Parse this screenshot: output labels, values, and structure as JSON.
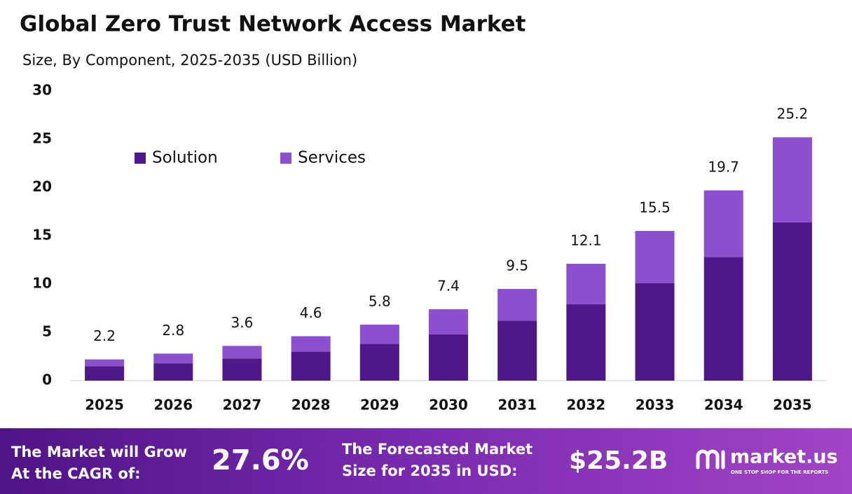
{
  "chart_data": {
    "type": "bar",
    "stacked": true,
    "title": "Global Zero Trust Network Access Market",
    "subtitle": "Size, By Component, 2025-2035 (USD Billion)",
    "categories": [
      "2025",
      "2026",
      "2027",
      "2028",
      "2029",
      "2030",
      "2031",
      "2032",
      "2033",
      "2034",
      "2035"
    ],
    "series": [
      {
        "name": "Solution",
        "color": "#4e1888",
        "values": [
          1.5,
          1.8,
          2.3,
          3.0,
          3.8,
          4.8,
          6.2,
          7.9,
          10.1,
          12.8,
          16.4
        ]
      },
      {
        "name": "Services",
        "color": "#8b4fd0",
        "values": [
          0.7,
          1.0,
          1.3,
          1.6,
          2.0,
          2.6,
          3.3,
          4.2,
          5.4,
          6.9,
          8.8
        ]
      }
    ],
    "totals": [
      2.2,
      2.8,
      3.6,
      4.6,
      5.8,
      7.4,
      9.5,
      12.1,
      15.5,
      19.7,
      25.2
    ],
    "ylim": [
      0,
      30
    ],
    "yticks": [
      0,
      5,
      10,
      15,
      20,
      25,
      30
    ],
    "grid": false,
    "legend": "top-left"
  },
  "footer": {
    "cagr_text": [
      "The Market will Grow",
      "At the CAGR of:"
    ],
    "cagr_value": "27.6%",
    "forecast_text": [
      "The Forecasted Market",
      "Size for 2035 in USD:"
    ],
    "forecast_value": "$25.2B",
    "brand": "market.us",
    "tagline": "ONE STOP SHOP FOR THE REPORTS"
  }
}
